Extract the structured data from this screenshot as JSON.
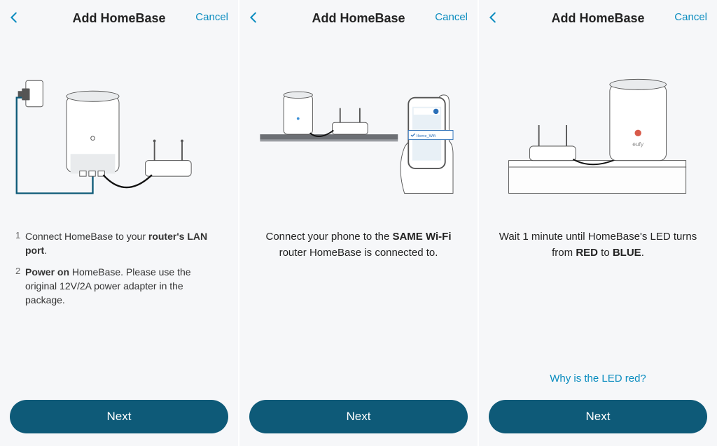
{
  "colors": {
    "accent": "#0a8cbf",
    "button": "#0e5a78",
    "bg": "#f6f7f9",
    "text": "#222",
    "illus_stroke": "#555",
    "illus_fill": "#e9ebed",
    "cable_power": "#0e5a78",
    "cable_eth": "#111",
    "led_red": "#d85a4a",
    "shelf": "#6c6f74",
    "phone_screen": "#e8f0f6",
    "wifi_bar": "#2a6fb8"
  },
  "screens": [
    {
      "title": "Add HomeBase",
      "cancel": "Cancel",
      "next": "Next",
      "help": null,
      "mode": "list",
      "items": [
        {
          "n": "1",
          "html": "Connect HomeBase to your <b>router's LAN port</b>."
        },
        {
          "n": "2",
          "html": "<b>Power on</b> HomeBase. Please use the original 12V/2A power adapter in the package."
        }
      ]
    },
    {
      "title": "Add HomeBase",
      "cancel": "Cancel",
      "next": "Next",
      "help": null,
      "mode": "center",
      "center_html": "Connect your phone to the <b>SAME Wi-Fi</b> router HomeBase is connected to."
    },
    {
      "title": "Add HomeBase",
      "cancel": "Cancel",
      "next": "Next",
      "help": "Why is the LED red?",
      "mode": "center",
      "center_html": "Wait 1 minute until HomeBase's LED turns from <b>RED</b> to <b>BLUE</b>."
    }
  ],
  "phone_label": "Home_Wifi",
  "device_brand": "eufy"
}
